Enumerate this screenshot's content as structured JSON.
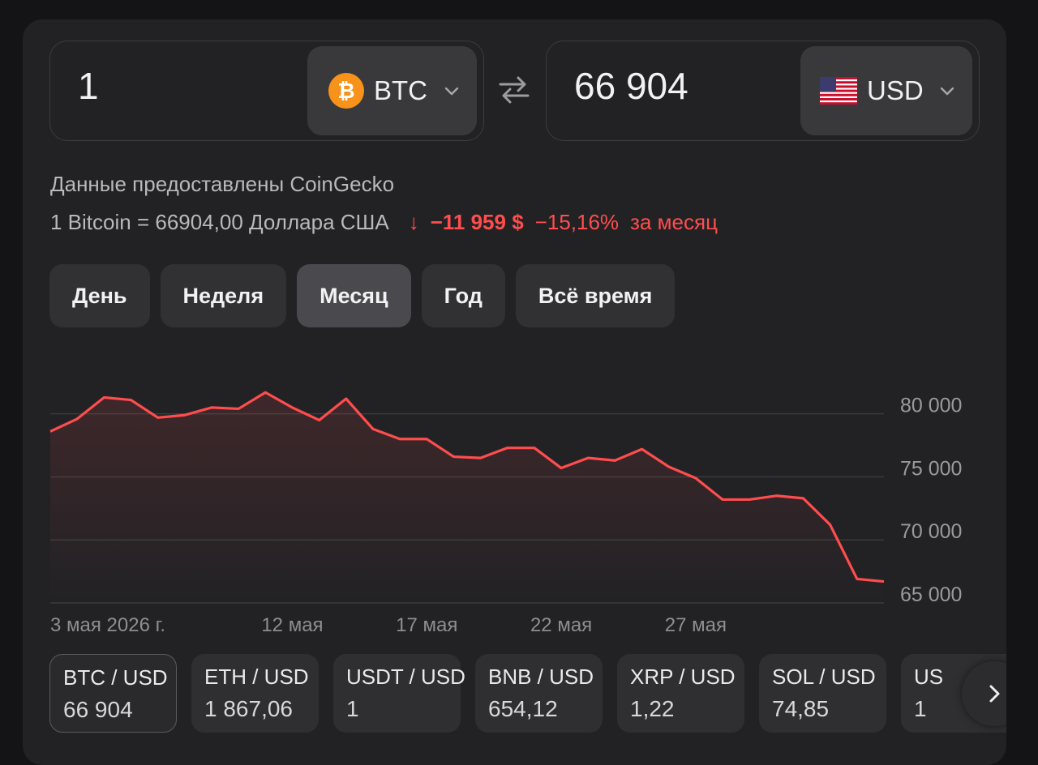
{
  "converter": {
    "from_amount": "1",
    "from_currency": "BTC",
    "to_amount": "66 904",
    "to_currency": "USD"
  },
  "source_text": "Данные предоставлены CoinGecko",
  "rate": {
    "text": "1 Bitcoin = 66904,00 Доллара США",
    "arrow": "↓",
    "change_abs": "−11 959 $",
    "change_pct": "−15,16%",
    "period": "за месяц"
  },
  "tabs": [
    {
      "label": "День",
      "active": false
    },
    {
      "label": "Неделя",
      "active": false
    },
    {
      "label": "Месяц",
      "active": true
    },
    {
      "label": "Год",
      "active": false
    },
    {
      "label": "Всё время",
      "active": false
    }
  ],
  "chart_data": {
    "type": "area",
    "x": [
      "3 мая",
      "4 мая",
      "5 мая",
      "6 мая",
      "7 мая",
      "8 мая",
      "9 мая",
      "10 мая",
      "11 мая",
      "12 мая",
      "13 мая",
      "14 мая",
      "15 мая",
      "16 мая",
      "17 мая",
      "18 мая",
      "19 мая",
      "20 мая",
      "21 мая",
      "22 мая",
      "23 мая",
      "24 мая",
      "25 мая",
      "26 мая",
      "27 мая",
      "28 мая",
      "29 мая",
      "30 мая",
      "31 мая",
      "1 июня",
      "2 июня",
      "3 июня"
    ],
    "values": [
      78600,
      79600,
      81300,
      81100,
      79700,
      79900,
      80500,
      80400,
      81700,
      80500,
      79500,
      81200,
      78800,
      78000,
      78000,
      76600,
      76500,
      77300,
      77300,
      75700,
      76500,
      76300,
      77200,
      75800,
      74900,
      73200,
      73200,
      73500,
      73300,
      71200,
      66900,
      66700
    ],
    "x_tick_labels": [
      "3 мая 2026 г.",
      "12 мая",
      "17 мая",
      "22 мая",
      "27 мая"
    ],
    "y_ticks": [
      80000,
      75000,
      70000,
      65000
    ],
    "y_tick_labels": [
      "80 000",
      "75 000",
      "70 000",
      "65 000"
    ],
    "ylim": [
      65000,
      83000
    ],
    "line_color": "#ff4d4d",
    "grid": true
  },
  "pairs": [
    {
      "name": "BTC / USD",
      "value": "66 904"
    },
    {
      "name": "ETH / USD",
      "value": "1 867,06"
    },
    {
      "name": "USDT / USD",
      "value": "1"
    },
    {
      "name": "BNB / USD",
      "value": "654,12"
    },
    {
      "name": "XRP / USD",
      "value": "1,22"
    },
    {
      "name": "SOL / USD",
      "value": "74,85"
    },
    {
      "name": "US",
      "value": "1"
    }
  ],
  "colors": {
    "background": "#141416",
    "card": "#222225",
    "accent_negative": "#ff4d4d",
    "btc_orange": "#f7931a"
  }
}
